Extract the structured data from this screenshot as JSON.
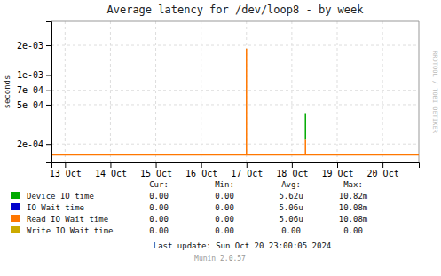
{
  "chart_data": {
    "type": "line",
    "title": "Average latency for /dev/loop8 - by week",
    "y_label": "seconds",
    "log": "y",
    "grid": true,
    "xlim": [
      -0.3,
      7.8
    ],
    "xticks": [
      {
        "value": 0,
        "label": "13 Oct"
      },
      {
        "value": 1,
        "label": "14 Oct"
      },
      {
        "value": 2,
        "label": "15 Oct"
      },
      {
        "value": 3,
        "label": "16 Oct"
      },
      {
        "value": 4,
        "label": "17 Oct"
      },
      {
        "value": 5,
        "label": "18 Oct"
      },
      {
        "value": 6,
        "label": "19 Oct"
      },
      {
        "value": 7,
        "label": "20 Oct"
      }
    ],
    "ylim": [
      0.00013,
      0.0035
    ],
    "yticks": [
      {
        "value": 0.0002,
        "label": "2e-04"
      },
      {
        "value": 0.0005,
        "label": "5e-04"
      },
      {
        "value": 0.0007,
        "label": "7e-04"
      },
      {
        "value": 0.001,
        "label": "1e-03"
      },
      {
        "value": 0.002,
        "label": "2e-03"
      }
    ],
    "series": [
      {
        "name": "Device IO time",
        "color": "#00aa00",
        "x": [
          5.3,
          5.3
        ],
        "values": [
          0.00022,
          0.00041
        ]
      },
      {
        "name": "IO Wait time",
        "color": "#0000cc",
        "x": [],
        "values": []
      },
      {
        "name": "Read IO Wait time",
        "color": "#ff7700",
        "x": [
          -0.3,
          7.8,
          null,
          4.0,
          4.0,
          null,
          5.3,
          5.3
        ],
        "values": [
          0.000155,
          0.000155,
          null,
          0.000155,
          0.00185,
          null,
          0.000155,
          0.00022
        ]
      },
      {
        "name": "Write IO Wait time",
        "color": "#ccaa00",
        "x": [],
        "values": []
      }
    ],
    "table": {
      "headers": [
        "Cur:",
        "Min:",
        "Avg:",
        "Max:"
      ],
      "rows": [
        [
          "0.00",
          "0.00",
          "5.62u",
          "10.82m"
        ],
        [
          "0.00",
          "0.00",
          "5.06u",
          "10.08m"
        ],
        [
          "0.00",
          "0.00",
          "5.06u",
          "10.08m"
        ],
        [
          "0.00",
          "0.00",
          "0.00",
          "0.00"
        ]
      ]
    },
    "last_update": "Last update: Sun Oct 20 23:00:05 2024",
    "version_note": "Munin 2.0.57",
    "watermark": "RRDTOOL / TOBI OETIKER"
  }
}
